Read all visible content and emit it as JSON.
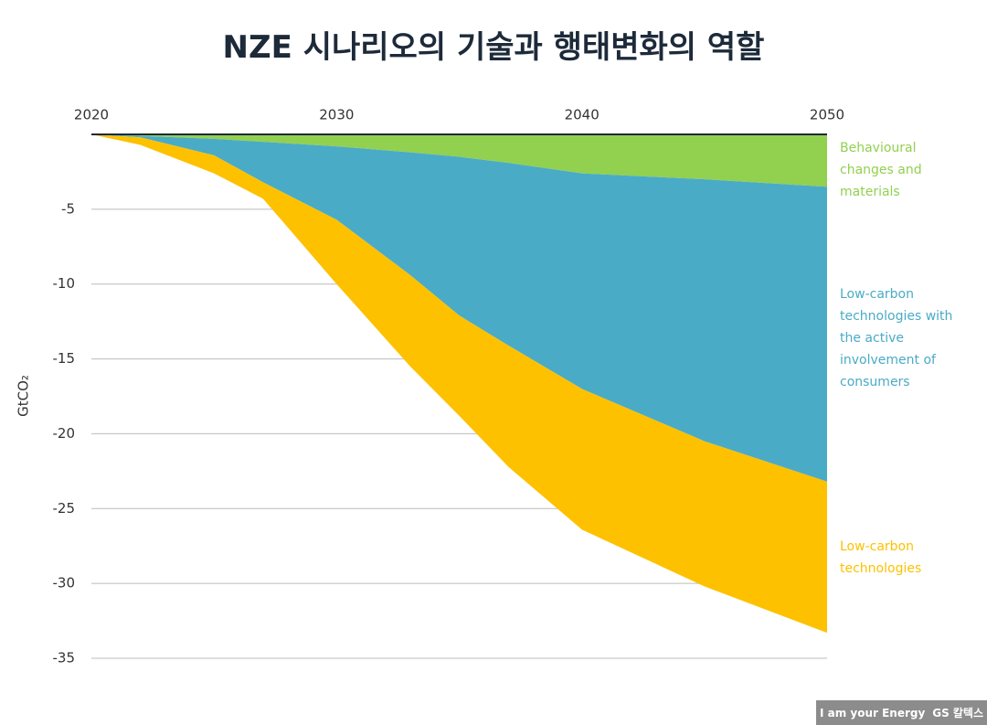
{
  "chart_data": {
    "type": "area",
    "stacked": true,
    "title": "NZE 시나리오의 기술과 행태변화의 역할",
    "y_label": "GtCO₂",
    "x": [
      2020,
      2022,
      2025,
      2027,
      2030,
      2033,
      2035,
      2037,
      2040,
      2045,
      2050
    ],
    "xlim": [
      2020,
      2050
    ],
    "xticks": [
      2020,
      2030,
      2040,
      2050
    ],
    "ylim": [
      -35,
      0
    ],
    "yticks": [
      -5,
      -10,
      -15,
      -20,
      -25,
      -30,
      -35
    ],
    "grid": true,
    "series": [
      {
        "name": "Behavioural changes and materials",
        "color": "#92d050",
        "values": [
          0,
          -0.1,
          -0.3,
          -0.5,
          -0.8,
          -1.2,
          -1.5,
          -1.9,
          -2.6,
          -3.0,
          -3.5
        ]
      },
      {
        "name": "Low-carbon technologies with the active involvement of consumers",
        "color": "#4aabc6",
        "values": [
          0,
          -0.1,
          -1.1,
          -2.7,
          -4.9,
          -8.2,
          -10.6,
          -12.2,
          -14.4,
          -17.5,
          -19.7
        ]
      },
      {
        "name": "Low-carbon technologies",
        "color": "#fdc100",
        "values": [
          0,
          -0.5,
          -1.2,
          -1.1,
          -4.3,
          -6.1,
          -6.7,
          -8.1,
          -9.4,
          -9.7,
          -10.1
        ]
      }
    ]
  },
  "footer": {
    "slogan": "I am your Energy",
    "brand": "GS 칼텍스"
  }
}
